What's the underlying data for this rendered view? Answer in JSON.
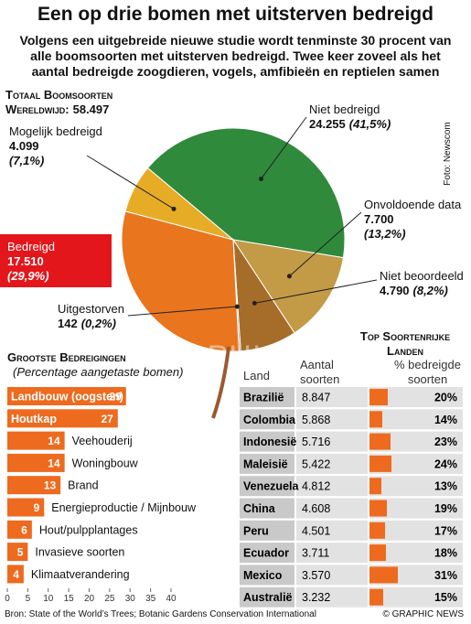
{
  "title": "Een op drie bomen met uitsterven bedreigd",
  "subtitle": "Volgens een uitgebreide nieuwe studie wordt tenminste 30 procent van alle boomsoorten met uitsterven bedreigd. Twee keer zoveel als het aantal bedreigde zoogdieren, vogels, amfibieën en reptielen samen",
  "photo_credit": "Foto: Newscom",
  "watermark": "GRAPHIC NEWS",
  "chart_data": [
    {
      "type": "pie",
      "total_title": "Totaal Boomsoorten",
      "total_prefix": "Wereldwijd:",
      "total": 58497,
      "total_label": "58.497",
      "categories": [
        "Niet bedreigd",
        "Onvoldoende data",
        "Niet beoordeeld",
        "Uitgestorven",
        "Bedreigd",
        "Mogelijk bedreigd"
      ],
      "values": [
        24255,
        7700,
        4790,
        142,
        17510,
        4099
      ],
      "value_labels": [
        "24.255",
        "7.700",
        "4.790",
        "142",
        "17.510",
        "4.099"
      ],
      "shares": [
        41.5,
        13.2,
        8.2,
        0.2,
        29.9,
        7.1
      ],
      "share_labels": [
        "(41,5%)",
        "(13,2%)",
        "(8,2%)",
        "(0,2%)",
        "(29,9%)",
        "(7,1%)"
      ],
      "colors": [
        "#2f8a3c",
        "#c39a45",
        "#a66d2a",
        "#8a8a8a",
        "#e9751f",
        "#e6ac26"
      ]
    },
    {
      "type": "hbar",
      "title": "Grootste Bedreigingen",
      "subtitle": "(Percentage aangetaste bomen)",
      "categories": [
        "Landbouw (oogsten)",
        "Houtkap",
        "Veehouderij",
        "Woningbouw",
        "Brand",
        "Energieproductie / Mijnbouw",
        "Hout/pulpplantages",
        "Invasieve soorten",
        "Klimaatverandering"
      ],
      "values": [
        29,
        27,
        14,
        14,
        13,
        9,
        6,
        5,
        4
      ],
      "color": "#ee6a1e",
      "xlim": [
        0,
        40
      ],
      "xticks": [
        0,
        5,
        10,
        15,
        20,
        25,
        30,
        35,
        40
      ]
    }
  ],
  "table": {
    "title": "Top Soortenrijke Landen",
    "columns": [
      "Land",
      "Aantal soorten",
      "% bedreigde soorten"
    ],
    "rows": [
      {
        "country": "Brazilië",
        "species": "8.847",
        "threatened": 20,
        "threatened_label": "20%"
      },
      {
        "country": "Colombia",
        "species": "5.868",
        "threatened": 14,
        "threatened_label": "14%"
      },
      {
        "country": "Indonesië",
        "species": "5.716",
        "threatened": 23,
        "threatened_label": "23%"
      },
      {
        "country": "Maleisië",
        "species": "5.422",
        "threatened": 24,
        "threatened_label": "24%"
      },
      {
        "country": "Venezuela",
        "species": "4.812",
        "threatened": 13,
        "threatened_label": "13%"
      },
      {
        "country": "China",
        "species": "4.608",
        "threatened": 19,
        "threatened_label": "19%"
      },
      {
        "country": "Peru",
        "species": "4.501",
        "threatened": 17,
        "threatened_label": "17%"
      },
      {
        "country": "Ecuador",
        "species": "3.711",
        "threatened": 18,
        "threatened_label": "18%"
      },
      {
        "country": "Mexico",
        "species": "3.570",
        "threatened": 31,
        "threatened_label": "31%"
      },
      {
        "country": "Australië",
        "species": "3.232",
        "threatened": 15,
        "threatened_label": "15%"
      }
    ]
  },
  "source": "Bron: State of the World’s Trees; Botanic Gardens Conservation International",
  "credit": "© GRAPHIC NEWS"
}
